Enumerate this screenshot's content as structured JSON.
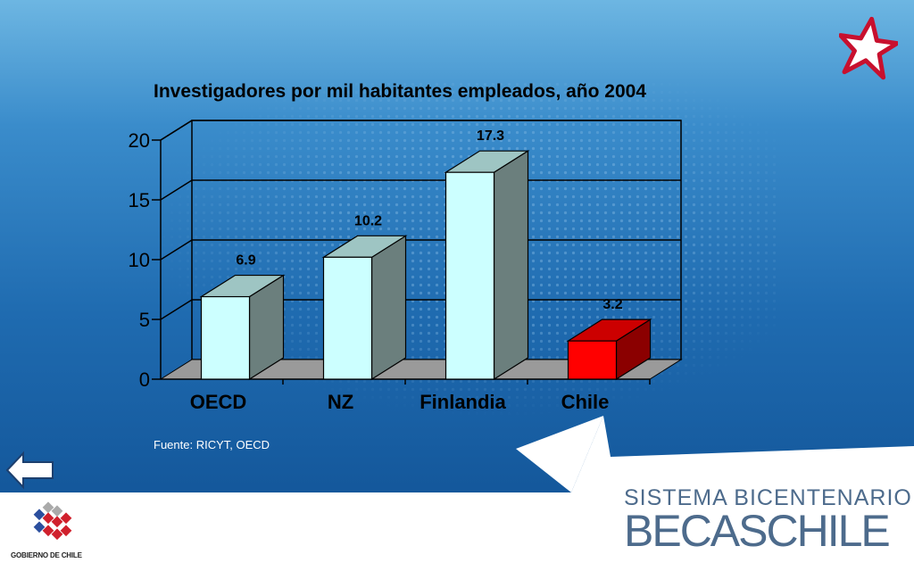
{
  "slide": {
    "title": "Investigadores por mil habitantes empleados, año 2004",
    "source_note": "Fuente: RICYT, OECD"
  },
  "branding": {
    "program_line1": "SISTEMA BICENTENARIO",
    "program_line2": "BECASCHILE",
    "gov_text": "GOBIERNO DE CHILE"
  },
  "colors": {
    "bar_front": "#ccffff",
    "bar_side": "#6b7f7d",
    "bar_top": "#9ec5c3",
    "highlight_front": "#ff0000",
    "highlight_side": "#8b0000",
    "highlight_top": "#cc0000",
    "floor": "#9a9a9a"
  },
  "chart_data": {
    "type": "bar",
    "categories": [
      "OECD",
      "NZ",
      "Finlandia",
      "Chile"
    ],
    "values": [
      6.9,
      10.2,
      17.3,
      3.2
    ],
    "data_labels": [
      "6.9",
      "10.2",
      "17.3",
      "3.2"
    ],
    "highlight": "Chile",
    "yticks": [
      "0",
      "5",
      "10",
      "15",
      "20"
    ],
    "ylim": [
      0,
      20
    ],
    "grid": true,
    "style": "3d-column"
  }
}
